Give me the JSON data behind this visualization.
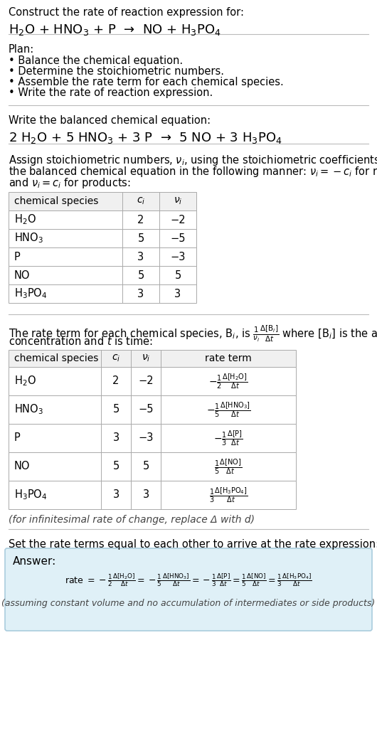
{
  "title_line1": "Construct the rate of reaction expression for:",
  "title_line2": "H$_2$O + HNO$_3$ + P  →  NO + H$_3$PO$_4$",
  "plan_header": "Plan:",
  "plan_items": [
    "• Balance the chemical equation.",
    "• Determine the stoichiometric numbers.",
    "• Assemble the rate term for each chemical species.",
    "• Write the rate of reaction expression."
  ],
  "balanced_eq_header": "Write the balanced chemical equation:",
  "balanced_eq": "2 H$_2$O + 5 HNO$_3$ + 3 P  →  5 NO + 3 H$_3$PO$_4$",
  "stoich_intro_lines": [
    "Assign stoichiometric numbers, $\\nu_i$, using the stoichiometric coefficients, $c_i$, from",
    "the balanced chemical equation in the following manner: $\\nu_i = -c_i$ for reactants",
    "and $\\nu_i = c_i$ for products:"
  ],
  "table1_headers": [
    "chemical species",
    "$c_i$",
    "$\\nu_i$"
  ],
  "table1_data": [
    [
      "H$_2$O",
      "2",
      "−2"
    ],
    [
      "HNO$_3$",
      "5",
      "−5"
    ],
    [
      "P",
      "3",
      "−3"
    ],
    [
      "NO",
      "5",
      "5"
    ],
    [
      "H$_3$PO$_4$",
      "3",
      "3"
    ]
  ],
  "rate_term_intro_lines": [
    "The rate term for each chemical species, B$_i$, is $\\frac{1}{\\nu_i}\\frac{\\Delta[\\mathrm{B}_i]}{\\Delta t}$ where [B$_i$] is the amount",
    "concentration and $t$ is time:"
  ],
  "table2_headers": [
    "chemical species",
    "$c_i$",
    "$\\nu_i$",
    "rate term"
  ],
  "table2_data": [
    [
      "H$_2$O",
      "2",
      "−2",
      "$-\\frac{1}{2}\\frac{\\Delta[\\mathrm{H_2O}]}{\\Delta t}$"
    ],
    [
      "HNO$_3$",
      "5",
      "−5",
      "$-\\frac{1}{5}\\frac{\\Delta[\\mathrm{HNO_3}]}{\\Delta t}$"
    ],
    [
      "P",
      "3",
      "−3",
      "$-\\frac{1}{3}\\frac{\\Delta[\\mathrm{P}]}{\\Delta t}$"
    ],
    [
      "NO",
      "5",
      "5",
      "$\\frac{1}{5}\\frac{\\Delta[\\mathrm{NO}]}{\\Delta t}$"
    ],
    [
      "H$_3$PO$_4$",
      "3",
      "3",
      "$\\frac{1}{3}\\frac{\\Delta[\\mathrm{H_3PO_4}]}{\\Delta t}$"
    ]
  ],
  "infinitesimal_note": "(for infinitesimal rate of change, replace Δ with d)",
  "set_equal_text": "Set the rate terms equal to each other to arrive at the rate expression:",
  "answer_label": "Answer:",
  "rate_expression_parts": [
    "rate $= -\\frac{1}{2}\\frac{\\Delta[\\mathrm{H_2O}]}{\\Delta t}$",
    "$= -\\frac{1}{5}\\frac{\\Delta[\\mathrm{HNO_3}]}{\\Delta t}$",
    "$= -\\frac{1}{3}\\frac{\\Delta[\\mathrm{P}]}{\\Delta t}$",
    "$= \\frac{1}{5}\\frac{\\Delta[\\mathrm{NO}]}{\\Delta t}$",
    "$= \\frac{1}{3}\\frac{\\Delta[\\mathrm{H_3PO_4}]}{\\Delta t}$"
  ],
  "assuming_note": "(assuming constant volume and no accumulation of intermediates or side products)",
  "bg_color": "#ffffff",
  "text_color": "#000000",
  "separator_color": "#bbbbbb",
  "answer_box_bg": "#dff0f7",
  "answer_box_border": "#aaccdd"
}
